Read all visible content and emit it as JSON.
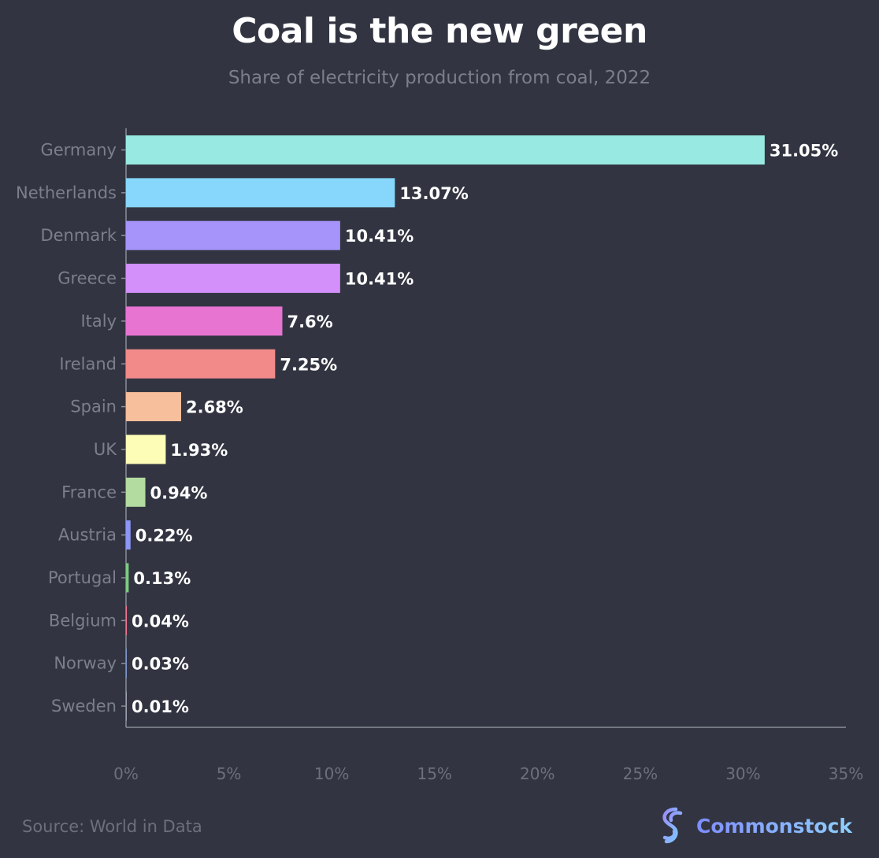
{
  "header": {
    "title": "Coal is the new green",
    "subtitle": "Share of electricity production from coal, 2022"
  },
  "footer": {
    "source": "Source: World in Data",
    "brand": "Commonstock"
  },
  "chart_data": {
    "type": "bar",
    "orientation": "horizontal",
    "title": "Coal is the new green",
    "subtitle": "Share of electricity production from coal, 2022",
    "xlabel": "",
    "ylabel": "",
    "xlim": [
      0,
      35
    ],
    "x_ticks": [
      0,
      5,
      10,
      15,
      20,
      25,
      30,
      35
    ],
    "x_tick_labels": [
      "0%",
      "5%",
      "10%",
      "15%",
      "20%",
      "25%",
      "30%",
      "35%"
    ],
    "grid": false,
    "categories": [
      "Germany",
      "Netherlands",
      "Denmark",
      "Greece",
      "Italy",
      "Ireland",
      "Spain",
      "UK",
      "France",
      "Austria",
      "Portugal",
      "Belgium",
      "Norway",
      "Sweden"
    ],
    "values": [
      31.05,
      13.07,
      10.41,
      10.41,
      7.6,
      7.25,
      2.68,
      1.93,
      0.94,
      0.22,
      0.13,
      0.04,
      0.03,
      0.01
    ],
    "value_labels": [
      "31.05%",
      "13.07%",
      "10.41%",
      "10.41%",
      "7.6%",
      "7.25%",
      "2.68%",
      "1.93%",
      "0.94%",
      "0.22%",
      "0.13%",
      "0.04%",
      "0.03%",
      "0.01%"
    ],
    "colors": [
      "#98e9e1",
      "#87d7fd",
      "#a694fa",
      "#d390fa",
      "#e874d2",
      "#f28a8a",
      "#f7bf9c",
      "#fdfdb7",
      "#b3dca1",
      "#8d95f5",
      "#7fcb84",
      "#f07890",
      "#7f95c8",
      "#9aa0b0"
    ]
  }
}
